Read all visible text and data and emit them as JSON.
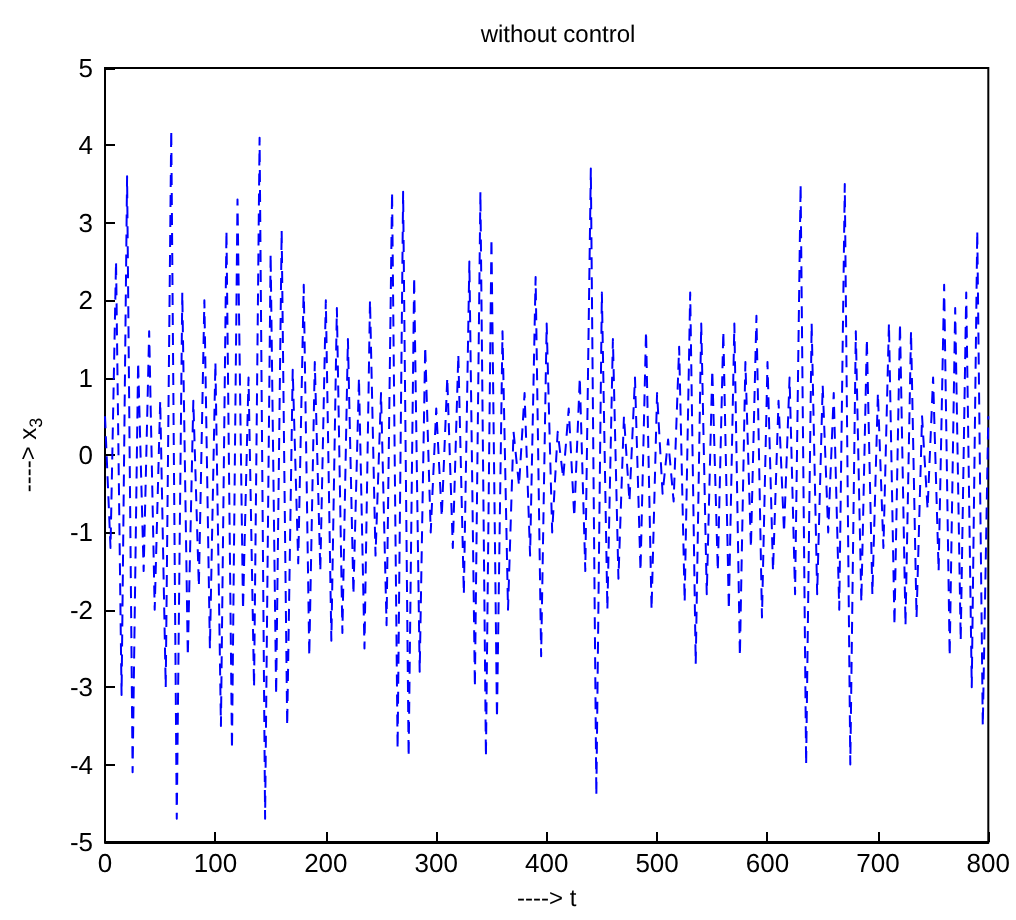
{
  "chart_data": {
    "type": "line",
    "title": "without control",
    "xlabel": "----> t",
    "ylabel": "----> x$_{3}$",
    "line_style": "dashed",
    "marker": "none",
    "xlim": [
      0,
      800
    ],
    "xticks": [
      0,
      100,
      200,
      300,
      400,
      500,
      600,
      700,
      800
    ],
    "ylim": [
      -5,
      5
    ],
    "yticks": [
      -5,
      -4,
      -3,
      -2,
      -1,
      0,
      1,
      2,
      3,
      4,
      5
    ],
    "series": [
      {
        "color": "#0000ff",
        "x": [
          0,
          5,
          10,
          15,
          20,
          25,
          30,
          35,
          40,
          45,
          50,
          55,
          60,
          65,
          70,
          75,
          80,
          85,
          90,
          95,
          100,
          105,
          110,
          115,
          120,
          125,
          130,
          135,
          140,
          145,
          150,
          155,
          160,
          165,
          170,
          175,
          180,
          185,
          190,
          195,
          200,
          205,
          210,
          215,
          220,
          225,
          230,
          235,
          240,
          245,
          250,
          255,
          260,
          265,
          270,
          275,
          280,
          285,
          290,
          295,
          300,
          305,
          310,
          315,
          320,
          325,
          330,
          335,
          340,
          345,
          350,
          355,
          360,
          365,
          370,
          375,
          380,
          385,
          390,
          395,
          400,
          405,
          410,
          415,
          420,
          425,
          430,
          435,
          440,
          445,
          450,
          455,
          460,
          465,
          470,
          475,
          480,
          485,
          490,
          495,
          500,
          505,
          510,
          515,
          520,
          525,
          530,
          535,
          540,
          545,
          550,
          555,
          560,
          565,
          570,
          575,
          580,
          585,
          590,
          595,
          600,
          605,
          610,
          615,
          620,
          625,
          630,
          635,
          640,
          645,
          650,
          655,
          660,
          665,
          670,
          675,
          680,
          685,
          690,
          695,
          700,
          705,
          710,
          715,
          720,
          725,
          730,
          735,
          740,
          745,
          750,
          755,
          760,
          765,
          770,
          775,
          780,
          785,
          790,
          795,
          800
        ],
        "values": [
          0.5,
          -1.2,
          2.5,
          -3.1,
          3.6,
          -4.1,
          1.2,
          -1.5,
          1.6,
          -2.0,
          0.7,
          -3.0,
          4.2,
          -4.7,
          2.1,
          -2.6,
          0.7,
          -1.7,
          2.0,
          -2.5,
          1.2,
          -3.5,
          2.9,
          -3.8,
          3.3,
          -2.0,
          1.0,
          -3.0,
          4.1,
          -4.7,
          2.6,
          -3.1,
          2.9,
          -3.5,
          1.1,
          -1.4,
          2.2,
          -2.6,
          1.2,
          -1.5,
          2.0,
          -2.4,
          1.9,
          -2.3,
          1.5,
          -1.8,
          1.0,
          -2.5,
          2.0,
          -1.3,
          0.8,
          -2.2,
          3.4,
          -3.8,
          3.4,
          -3.9,
          2.3,
          -2.8,
          1.4,
          -1.0,
          0.6,
          -0.8,
          1.0,
          -1.2,
          1.3,
          -1.8,
          2.5,
          -3.0,
          3.4,
          -3.9,
          2.8,
          -3.4,
          1.6,
          -2.0,
          0.3,
          -0.4,
          0.8,
          -1.3,
          2.3,
          -2.6,
          1.7,
          -1.0,
          0.3,
          -0.3,
          0.6,
          -0.8,
          1.0,
          -1.5,
          3.7,
          -4.4,
          2.1,
          -2.0,
          1.5,
          -1.6,
          0.5,
          -0.6,
          1.0,
          -1.5,
          1.6,
          -2.0,
          0.8,
          -0.5,
          0.2,
          -0.6,
          1.4,
          -1.9,
          2.1,
          -2.7,
          1.7,
          -1.8,
          1.1,
          -1.5,
          1.6,
          -2.0,
          1.7,
          -2.6,
          1.2,
          -1.2,
          1.8,
          -2.1,
          1.2,
          -1.5,
          0.7,
          -1.0,
          1.0,
          -1.8,
          3.5,
          -4.0,
          1.7,
          -1.8,
          0.9,
          -1.0,
          0.8,
          -2.0,
          3.5,
          -4.0,
          1.6,
          -1.9,
          1.5,
          -1.8,
          0.8,
          -1.2,
          1.7,
          -2.2,
          1.7,
          -2.2,
          1.6,
          -2.1,
          0.5,
          -0.7,
          1.0,
          -1.5,
          2.2,
          -2.6,
          1.9,
          -2.4,
          2.1,
          -3.0,
          2.9,
          -3.5,
          0.5
        ]
      }
    ]
  }
}
